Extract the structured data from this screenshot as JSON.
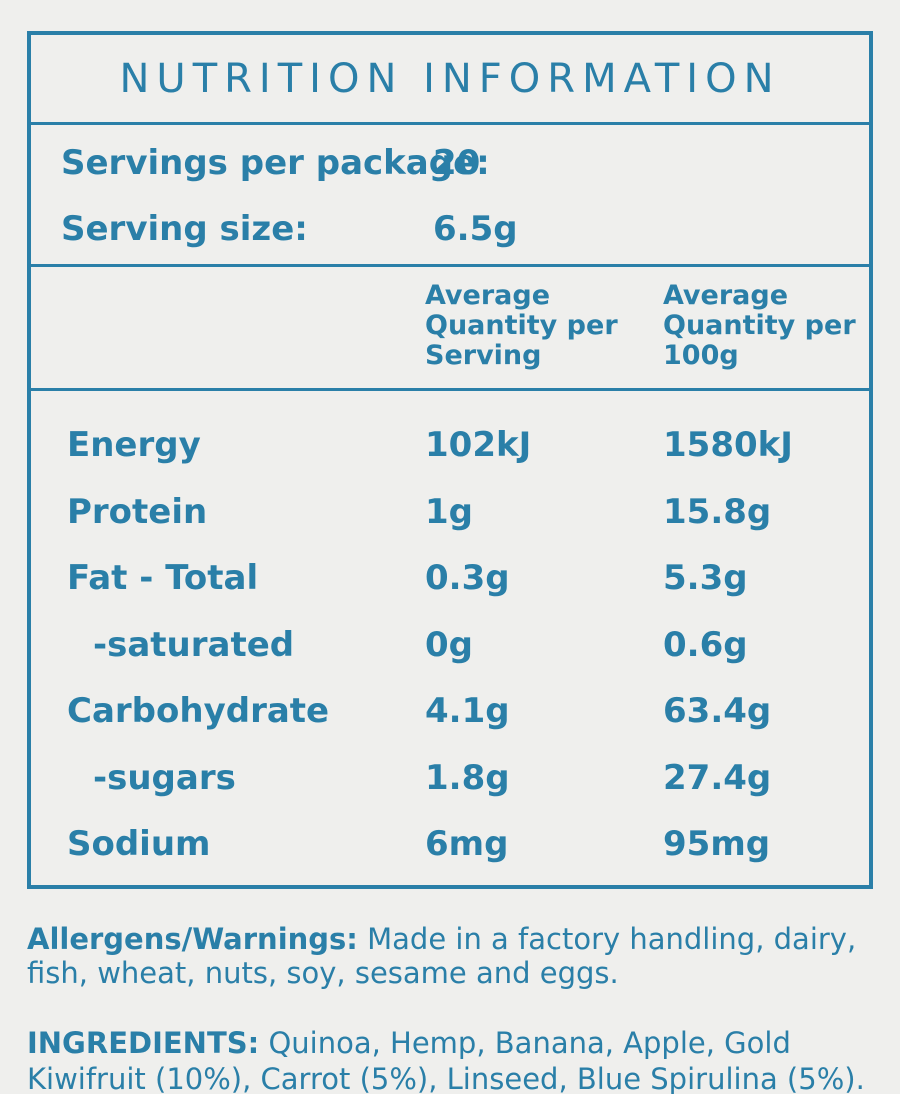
{
  "label": {
    "title": "NUTRITION INFORMATION",
    "servings_per_package_label": "Servings per package:",
    "servings_per_package_value": "20",
    "serving_size_label": "Serving size:",
    "serving_size_value": "6.5g",
    "column_headers": [
      "Average Quantity per Serving",
      "Average Quantity per 100g"
    ],
    "rows": [
      {
        "name": "Energy",
        "per_serving": "102kJ",
        "per_100g": "1580kJ"
      },
      {
        "name": "Protein",
        "per_serving": "1g",
        "per_100g": "15.8g"
      },
      {
        "name": "Fat - Total",
        "per_serving": "0.3g",
        "per_100g": "5.3g"
      },
      {
        "name": "-saturated",
        "per_serving": "0g",
        "per_100g": "0.6g"
      },
      {
        "name": "Carbohydrate",
        "per_serving": "4.1g",
        "per_100g": "63.4g"
      },
      {
        "name": "-sugars",
        "per_serving": "1.8g",
        "per_100g": "27.4g"
      },
      {
        "name": "Sodium",
        "per_serving": "6mg",
        "per_100g": "95mg"
      }
    ]
  },
  "allergens": {
    "label": "Allergens/Warnings:",
    "text": "Made in a factory handling, dairy, fish, wheat, nuts, soy, sesame and eggs."
  },
  "ingredients": {
    "label": "INGREDIENTS:",
    "text": "Quinoa, Hemp, Banana, Apple, Gold Kiwifruit (10%), Carrot (5%), Linseed, Blue Spirulina (5%)."
  },
  "colors": {
    "ink": "#2a7fa8",
    "background": "#efefed"
  }
}
